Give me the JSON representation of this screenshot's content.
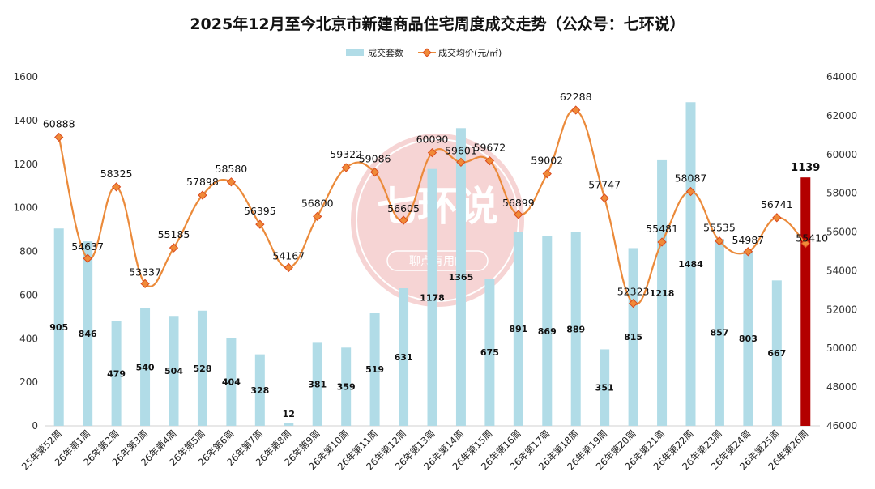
{
  "title": "2025年12月至今北京市新建商品住宅周度成交走势（公众号：七环说）",
  "watermark": {
    "main": "七环说",
    "sub": "聊点有用的"
  },
  "colors": {
    "bar": "#b1dce7",
    "bar_highlight": "#b30000",
    "line": "#eb8a3a",
    "marker_fill": "#f08a38",
    "marker_stroke": "#d94a1e",
    "watermark": "#d9413f"
  },
  "chart_data": {
    "type": "bar",
    "title": "2025年12月至今北京市新建商品住宅周度成交走势（公众号：七环说）",
    "legend_position": "top-center",
    "grid": false,
    "categories": [
      "25年第52周",
      "26年第1周",
      "26年第2周",
      "26年第3周",
      "26年第4周",
      "26年第5周",
      "26年第6周",
      "26年第7周",
      "26年第8周",
      "26年第9周",
      "26年第10周",
      "26年第11周",
      "26年第12周",
      "26年第13周",
      "26年第14周",
      "26年第15周",
      "26年第16周",
      "26年第17周",
      "26年第18周",
      "26年第19周",
      "26年第20周",
      "26年第21周",
      "26年第22周",
      "26年第23周",
      "26年第24周",
      "26年第25周",
      "26年第26周"
    ],
    "y_left": {
      "min": 0,
      "max": 1600,
      "ticks": [
        0,
        200,
        400,
        600,
        800,
        1000,
        1200,
        1400,
        1600
      ]
    },
    "y_right": {
      "min": 46000,
      "max": 64000,
      "ticks": [
        46000,
        48000,
        50000,
        52000,
        54000,
        56000,
        58000,
        60000,
        62000,
        64000
      ]
    },
    "series": [
      {
        "name": "成交套数",
        "type": "bar",
        "axis": "left",
        "highlight_index": 26,
        "values": [
          905,
          846,
          479,
          540,
          504,
          528,
          404,
          328,
          12,
          381,
          359,
          519,
          631,
          1178,
          1365,
          675,
          891,
          869,
          889,
          351,
          815,
          1218,
          1484,
          857,
          803,
          667,
          1139
        ]
      },
      {
        "name": "成交均价(元/㎡)",
        "type": "line",
        "axis": "right",
        "smooth": true,
        "values": [
          60888,
          54637,
          58325,
          53337,
          55185,
          57898,
          58580,
          56395,
          54167,
          56800,
          59322,
          59086,
          56605,
          60090,
          59601,
          59672,
          56899,
          59002,
          62288,
          57747,
          52323,
          55481,
          58087,
          55535,
          54987,
          56741,
          55410
        ]
      }
    ]
  }
}
